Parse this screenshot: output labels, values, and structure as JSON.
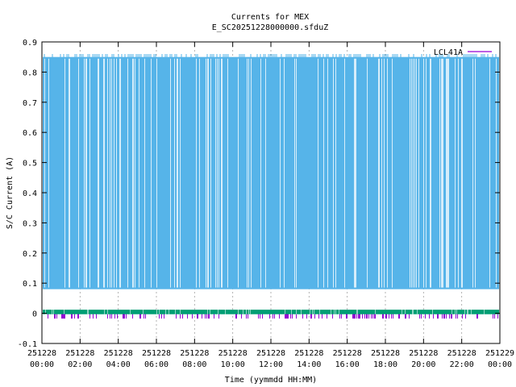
{
  "chart_data": {
    "type": "line",
    "title": "Currents for MEX",
    "subtitle": "E_SC20251228000000.sfduZ",
    "xlabel": "Time (yymmdd HH:MM)",
    "ylabel": "S/C Current (A)",
    "ylim": [
      -0.1,
      0.9
    ],
    "yticks": [
      "-0.1",
      "0",
      "0.1",
      "0.2",
      "0.3",
      "0.4",
      "0.5",
      "0.6",
      "0.7",
      "0.8",
      "0.9"
    ],
    "xticks": [
      {
        "date": "251228",
        "time": "00:00"
      },
      {
        "date": "251228",
        "time": "02:00"
      },
      {
        "date": "251228",
        "time": "04:00"
      },
      {
        "date": "251228",
        "time": "06:00"
      },
      {
        "date": "251228",
        "time": "08:00"
      },
      {
        "date": "251228",
        "time": "10:00"
      },
      {
        "date": "251228",
        "time": "12:00"
      },
      {
        "date": "251228",
        "time": "14:00"
      },
      {
        "date": "251228",
        "time": "16:00"
      },
      {
        "date": "251228",
        "time": "18:00"
      },
      {
        "date": "251228",
        "time": "20:00"
      },
      {
        "date": "251228",
        "time": "22:00"
      },
      {
        "date": "251229",
        "time": "00:00"
      }
    ],
    "grid": true,
    "legend_position": "top-right",
    "series": [
      {
        "name": "LCL41A",
        "color": "#56b4e9",
        "legend_color": "#9400d3",
        "band_low": 0.08,
        "band_high": 0.86,
        "typical_high": 0.85
      },
      {
        "name": "",
        "color": "#009e73",
        "baseline": 0.0,
        "band": [
          -0.003,
          0.012
        ]
      },
      {
        "name": "",
        "color": "#9400d3",
        "baseline": -0.005,
        "band": [
          -0.012,
          0.003
        ]
      }
    ]
  }
}
